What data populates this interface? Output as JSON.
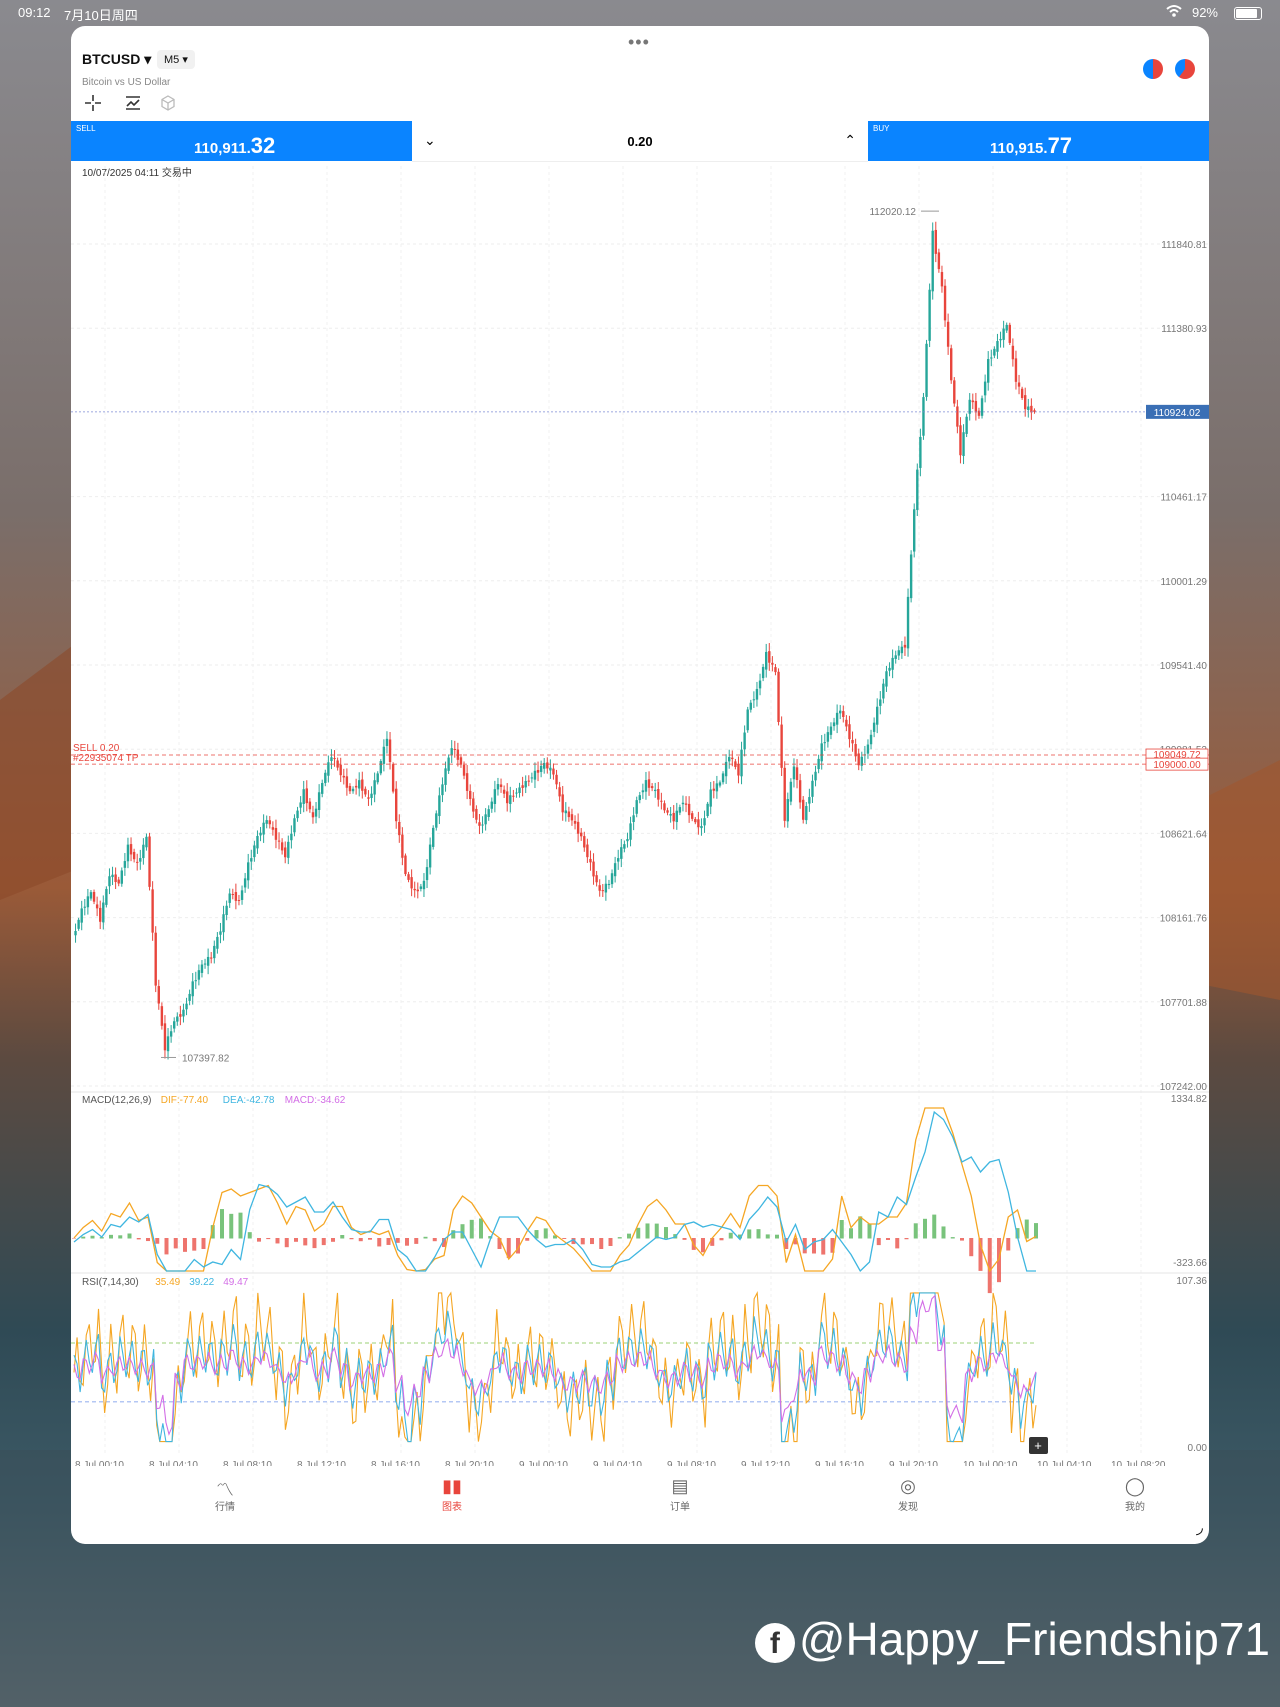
{
  "status": {
    "time": "09:12",
    "date": "7月10日周四",
    "battery": "92%"
  },
  "header": {
    "symbol": "BTCUSD",
    "timeframe": "M5",
    "description": "Bitcoin vs US Dollar"
  },
  "trade": {
    "sell_label": "SELL",
    "sell_price_main": "110,911.",
    "sell_price_big": "32",
    "buy_label": "BUY",
    "buy_price_main": "110,915.",
    "buy_price_big": "77",
    "volume": "0.20"
  },
  "chart_stamp": "10/07/2025 04:11 交易中",
  "icons": {
    "crosshair": "crosshair-icon",
    "indicators": "indicator-icon",
    "objects": "cube-icon"
  },
  "chart_data": {
    "type": "candlestick",
    "price_axis": [
      "111840.81",
      "111380.93",
      "110461.17",
      "110001.29",
      "109541.40",
      "109081.52",
      "108621.64",
      "108161.76",
      "107701.88",
      "107242.00"
    ],
    "current_price": "110924.02",
    "high_label": "112020.12",
    "low_label": "107397.82",
    "order_lines": {
      "sell_label": "SELL 0.20",
      "ticket_label": "#22935074 TP",
      "tp_price_a": "109049.72",
      "tp_price_b": "109000.00"
    },
    "price_path": [
      108050,
      108200,
      108300,
      108150,
      108400,
      108350,
      108550,
      108450,
      108600,
      107800,
      107450,
      107600,
      107650,
      107800,
      107900,
      107950,
      108100,
      108300,
      108250,
      108450,
      108600,
      108700,
      108600,
      108500,
      108700,
      108850,
      108700,
      108900,
      109050,
      108950,
      108850,
      108900,
      108800,
      108950,
      109150,
      108700,
      108400,
      108300,
      108350,
      108650,
      108900,
      109100,
      109000,
      108800,
      108650,
      108750,
      108900,
      108800,
      108850,
      108900,
      108950,
      109000,
      108950,
      108750,
      108700,
      108600,
      108450,
      108300,
      108350,
      108500,
      108600,
      108800,
      108900,
      108850,
      108750,
      108700,
      108800,
      108700,
      108650,
      108850,
      108900,
      109050,
      108950,
      109300,
      109400,
      109600,
      109500,
      108700,
      109000,
      108700,
      108900,
      109100,
      109200,
      109300,
      109150,
      109000,
      109100,
      109300,
      109500,
      109600,
      109650,
      110400,
      111000,
      111900,
      111600,
      111100,
      110700,
      111000,
      110900,
      111200,
      111300,
      111400,
      111100,
      110950,
      110924
    ],
    "macd": {
      "title": "MACD(12,26,9)",
      "dif": "DIF:-77.40",
      "dea": "DEA:-42.78",
      "macd": "MACD:-34.62",
      "max": "1334.82",
      "min": "-323.66"
    },
    "rsi": {
      "title": "RSI(7,14,30)",
      "r1": "35.49",
      "r2": "39.22",
      "r3": "49.47",
      "max": "107.36",
      "min": "0.00"
    },
    "time_axis": [
      "8 Jul 00:10",
      "8 Jul 04:10",
      "8 Jul 08:10",
      "8 Jul 12:10",
      "8 Jul 16:10",
      "8 Jul 20:10",
      "9 Jul 00:10",
      "9 Jul 04:10",
      "9 Jul 08:10",
      "9 Jul 12:10",
      "9 Jul 16:10",
      "9 Jul 20:10",
      "10 Jul 00:10",
      "10 Jul 04:10",
      "10 Jul 08:20"
    ]
  },
  "colors": {
    "accent": "#0a84ff",
    "up": "#26a69a",
    "down": "#e8453c",
    "dif": "#f5a623",
    "dea": "#3fb6e0",
    "macd": "#d36ee6"
  },
  "nav": [
    {
      "label": "行情",
      "icon": "chart-icon"
    },
    {
      "label": "图表",
      "icon": "candles-icon"
    },
    {
      "label": "订单",
      "icon": "orders-icon"
    },
    {
      "label": "发现",
      "icon": "compass-icon"
    },
    {
      "label": "我的",
      "icon": "profile-icon"
    }
  ],
  "watermark": "@Happy_Friendship71"
}
